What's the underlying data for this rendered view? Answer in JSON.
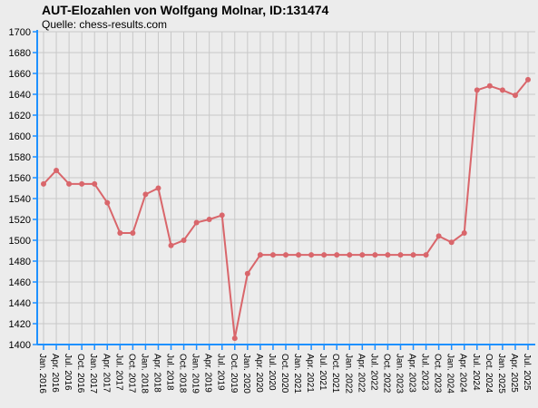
{
  "chart_data": {
    "type": "line",
    "title": "AUT-Elozahlen von Wolfgang Molnar, ID:131474",
    "subtitle": "Quelle: chess-results.com",
    "categories": [
      "Jan. 2016",
      "Apr. 2016",
      "Jul. 2016",
      "Oct. 2016",
      "Jan. 2017",
      "Apr. 2017",
      "Jul. 2017",
      "Oct. 2017",
      "Jan. 2018",
      "Apr. 2018",
      "Jul. 2018",
      "Oct. 2018",
      "Jan. 2019",
      "Apr. 2019",
      "Jul. 2019",
      "Oct. 2019",
      "Jan. 2020",
      "Apr. 2020",
      "Jul. 2020",
      "Oct. 2020",
      "Jan. 2021",
      "Apr. 2021",
      "Jul. 2021",
      "Oct. 2021",
      "Jan. 2022",
      "Apr. 2022",
      "Jul. 2022",
      "Oct. 2022",
      "Jan. 2023",
      "Apr. 2023",
      "Jul. 2023",
      "Oct. 2023",
      "Jan. 2024",
      "Apr. 2024",
      "Jul. 2024",
      "Oct. 2024",
      "Jan. 2025",
      "Apr. 2025",
      "Jul. 2025"
    ],
    "values": [
      1554,
      1567,
      1554,
      1554,
      1554,
      1536,
      1507,
      1507,
      1544,
      1550,
      1495,
      1500,
      1517,
      1520,
      1524,
      1406,
      1468,
      1486,
      1486,
      1486,
      1486,
      1486,
      1486,
      1486,
      1486,
      1486,
      1486,
      1486,
      1486,
      1486,
      1486,
      1504,
      1498,
      1507,
      1644,
      1648,
      1644,
      1639,
      1654
    ],
    "color": "#d9666b",
    "ylim": [
      1400,
      1700
    ],
    "yticks": [
      1400,
      1420,
      1440,
      1460,
      1480,
      1500,
      1520,
      1540,
      1560,
      1580,
      1600,
      1620,
      1640,
      1660,
      1680,
      1700
    ],
    "grid": true
  }
}
